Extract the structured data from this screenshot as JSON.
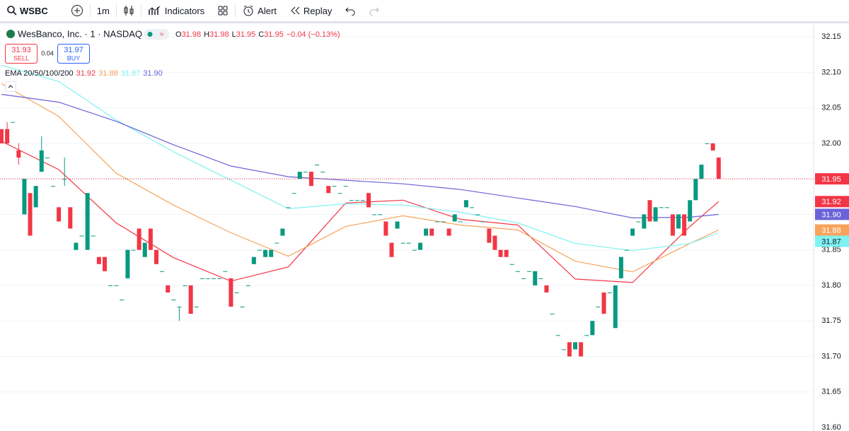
{
  "toolbar": {
    "symbol": "WSBC",
    "interval": "1m",
    "indicators": "Indicators",
    "alert": "Alert",
    "replay": "Replay"
  },
  "legend": {
    "title": "WesBanco, Inc. · 1 · NASDAQ",
    "o_label": "O",
    "open": "31.98",
    "h_label": "H",
    "high": "31.98",
    "l_label": "L",
    "low": "31.95",
    "c_label": "C",
    "close": "31.95",
    "change": "−0.04 (−0.13%)"
  },
  "trade": {
    "sell_price": "31.93",
    "sell": "SELL",
    "spread": "0.04",
    "buy_price": "31.97",
    "buy": "BUY"
  },
  "chart_data": {
    "type": "candlestick",
    "indicator_label": "EMA 20/50/100/200",
    "up_color": "#089981",
    "down_color": "#f23645",
    "ohlc": [
      [
        32.02,
        32.02,
        32.0,
        32.0
      ],
      [
        32.02,
        32.03,
        32.0,
        32.0
      ],
      [
        32.03,
        32.03,
        32.03,
        32.03
      ],
      [
        31.99,
        32.0,
        31.97,
        31.98
      ],
      [
        31.9,
        31.95,
        31.9,
        31.95
      ],
      [
        31.93,
        31.93,
        31.87,
        31.87
      ],
      [
        31.91,
        31.94,
        31.91,
        31.94
      ],
      [
        31.96,
        32.01,
        31.96,
        31.99
      ],
      [
        31.98,
        31.98,
        31.98,
        31.98
      ],
      [
        31.94,
        31.94,
        31.94,
        31.94
      ],
      [
        31.91,
        31.91,
        31.89,
        31.89
      ],
      [
        31.95,
        31.98,
        31.94,
        31.95
      ],
      [
        31.91,
        31.91,
        31.88,
        31.88
      ],
      [
        31.85,
        31.86,
        31.85,
        31.86
      ],
      [
        31.87,
        31.87,
        31.87,
        31.87
      ],
      [
        31.85,
        31.93,
        31.85,
        31.93
      ],
      [
        31.87,
        31.87,
        31.87,
        31.87
      ],
      [
        31.84,
        31.84,
        31.83,
        31.83
      ],
      [
        31.84,
        31.84,
        31.82,
        31.82
      ],
      [
        31.8,
        31.8,
        31.8,
        31.8
      ],
      [
        31.8,
        31.8,
        31.8,
        31.8
      ],
      [
        31.78,
        31.78,
        31.78,
        31.78
      ],
      [
        31.81,
        31.85,
        31.81,
        31.85
      ],
      [
        31.85,
        31.85,
        31.85,
        31.85
      ],
      [
        31.88,
        31.88,
        31.85,
        31.85
      ],
      [
        31.84,
        31.86,
        31.84,
        31.86
      ],
      [
        31.88,
        31.88,
        31.85,
        31.85
      ],
      [
        31.85,
        31.85,
        31.83,
        31.83
      ],
      [
        31.82,
        31.82,
        31.82,
        31.82
      ],
      [
        31.8,
        31.8,
        31.79,
        31.79
      ],
      [
        31.78,
        31.78,
        31.78,
        31.78
      ],
      [
        31.77,
        31.77,
        31.75,
        31.77
      ],
      [
        31.8,
        31.8,
        31.8,
        31.8
      ],
      [
        31.8,
        31.8,
        31.76,
        31.76
      ],
      [
        31.77,
        31.77,
        31.77,
        31.77
      ],
      [
        31.81,
        31.81,
        31.81,
        31.81
      ],
      [
        31.81,
        31.81,
        31.81,
        31.81
      ],
      [
        31.81,
        31.81,
        31.81,
        31.81
      ],
      [
        31.81,
        31.81,
        31.81,
        31.81
      ],
      [
        31.82,
        31.82,
        31.82,
        31.82
      ],
      [
        31.81,
        31.81,
        31.77,
        31.77
      ],
      [
        31.79,
        31.79,
        31.79,
        31.79
      ],
      [
        31.77,
        31.77,
        31.77,
        31.77
      ],
      [
        31.8,
        31.8,
        31.8,
        31.8
      ],
      [
        31.83,
        31.84,
        31.83,
        31.84
      ],
      [
        31.85,
        31.85,
        31.85,
        31.85
      ],
      [
        31.84,
        31.85,
        31.84,
        31.85
      ],
      [
        31.84,
        31.85,
        31.84,
        31.85
      ],
      [
        31.86,
        31.86,
        31.86,
        31.86
      ],
      [
        31.87,
        31.88,
        31.87,
        31.88
      ],
      [
        31.91,
        31.91,
        31.91,
        31.91
      ],
      [
        31.93,
        31.93,
        31.93,
        31.93
      ],
      [
        31.95,
        31.96,
        31.95,
        31.96
      ],
      [
        31.96,
        31.96,
        31.96,
        31.96
      ],
      [
        31.96,
        31.96,
        31.94,
        31.94
      ],
      [
        31.97,
        31.97,
        31.97,
        31.97
      ],
      [
        31.96,
        31.96,
        31.96,
        31.96
      ],
      [
        31.94,
        31.94,
        31.93,
        31.93
      ],
      [
        31.94,
        31.94,
        31.94,
        31.94
      ],
      [
        31.93,
        31.93,
        31.93,
        31.93
      ],
      [
        31.94,
        31.94,
        31.94,
        31.94
      ],
      [
        31.92,
        31.92,
        31.92,
        31.92
      ],
      [
        31.92,
        31.92,
        31.92,
        31.92
      ],
      [
        31.92,
        31.92,
        31.92,
        31.92
      ],
      [
        31.93,
        31.93,
        31.91,
        31.91
      ],
      [
        31.9,
        31.9,
        31.9,
        31.9
      ],
      [
        31.9,
        31.9,
        31.9,
        31.9
      ],
      [
        31.89,
        31.89,
        31.87,
        31.87
      ],
      [
        31.86,
        31.86,
        31.84,
        31.84
      ],
      [
        31.88,
        31.89,
        31.88,
        31.89
      ],
      [
        31.86,
        31.86,
        31.86,
        31.86
      ],
      [
        31.86,
        31.86,
        31.86,
        31.86
      ],
      [
        31.85,
        31.85,
        31.85,
        31.85
      ],
      [
        31.85,
        31.86,
        31.85,
        31.86
      ],
      [
        31.87,
        31.88,
        31.87,
        31.88
      ],
      [
        31.88,
        31.88,
        31.87,
        31.87
      ],
      [
        31.89,
        31.89,
        31.89,
        31.89
      ],
      [
        31.89,
        31.89,
        31.89,
        31.89
      ],
      [
        31.88,
        31.88,
        31.87,
        31.87
      ],
      [
        31.89,
        31.9,
        31.89,
        31.9
      ],
      [
        31.89,
        31.89,
        31.89,
        31.89
      ],
      [
        31.91,
        31.92,
        31.91,
        31.92
      ],
      [
        31.91,
        31.91,
        31.91,
        31.91
      ],
      [
        31.9,
        31.9,
        31.9,
        31.9
      ],
      [
        31.89,
        31.89,
        31.89,
        31.89
      ],
      [
        31.88,
        31.88,
        31.86,
        31.86
      ],
      [
        31.87,
        31.87,
        31.85,
        31.85
      ],
      [
        31.85,
        31.85,
        31.84,
        31.84
      ],
      [
        31.85,
        31.85,
        31.84,
        31.84
      ],
      [
        31.83,
        31.83,
        31.83,
        31.83
      ],
      [
        31.82,
        31.82,
        31.82,
        31.82
      ],
      [
        31.81,
        31.81,
        31.81,
        31.81
      ],
      [
        31.82,
        31.82,
        31.82,
        31.82
      ],
      [
        31.8,
        31.82,
        31.8,
        31.82
      ],
      [
        31.81,
        31.81,
        31.81,
        31.81
      ],
      [
        31.8,
        31.8,
        31.79,
        31.79
      ],
      [
        31.76,
        31.76,
        31.76,
        31.76
      ],
      [
        31.73,
        31.73,
        31.73,
        31.73
      ],
      [
        31.71,
        31.71,
        31.71,
        31.71
      ],
      [
        31.72,
        31.72,
        31.7,
        31.7
      ],
      [
        31.71,
        31.72,
        31.71,
        31.72
      ],
      [
        31.72,
        31.72,
        31.7,
        31.7
      ],
      [
        31.73,
        31.73,
        31.73,
        31.73
      ],
      [
        31.73,
        31.75,
        31.73,
        31.75
      ],
      [
        31.77,
        31.77,
        31.77,
        31.77
      ],
      [
        31.79,
        31.79,
        31.76,
        31.76
      ],
      [
        31.79,
        31.79,
        31.79,
        31.79
      ],
      [
        31.74,
        31.8,
        31.74,
        31.8
      ],
      [
        31.81,
        31.84,
        31.81,
        31.84
      ],
      [
        31.85,
        31.85,
        31.85,
        31.85
      ],
      [
        31.87,
        31.88,
        31.87,
        31.88
      ],
      [
        31.89,
        31.89,
        31.89,
        31.89
      ],
      [
        31.88,
        31.9,
        31.88,
        31.9
      ],
      [
        31.92,
        31.92,
        31.89,
        31.89
      ],
      [
        31.89,
        31.91,
        31.89,
        31.91
      ],
      [
        31.91,
        31.91,
        31.91,
        31.91
      ],
      [
        31.91,
        31.91,
        31.91,
        31.91
      ],
      [
        31.9,
        31.9,
        31.87,
        31.87
      ],
      [
        31.88,
        31.9,
        31.88,
        31.9
      ],
      [
        31.9,
        31.9,
        31.87,
        31.87
      ],
      [
        31.89,
        31.92,
        31.89,
        31.92
      ],
      [
        31.92,
        31.95,
        31.92,
        31.95
      ],
      [
        31.95,
        31.97,
        31.95,
        31.97
      ],
      [
        32.0,
        32.0,
        32.0,
        32.0
      ],
      [
        32.0,
        32.0,
        31.99,
        31.99
      ],
      [
        31.98,
        31.98,
        31.95,
        31.95
      ]
    ],
    "series": [
      {
        "color": "#f23645",
        "label_text_color": "#ffffff",
        "x": [
          0,
          10,
          20,
          30,
          40,
          50,
          60,
          70,
          80,
          90,
          100,
          110,
          120,
          125
        ],
        "values": [
          32.003,
          31.963,
          31.888,
          31.839,
          31.806,
          31.826,
          31.916,
          31.92,
          31.893,
          31.885,
          31.809,
          31.804,
          31.883,
          31.918
        ],
        "value_label": "31.92"
      },
      {
        "color": "#f7a35c",
        "label_text_color": "#ffffff",
        "x": [
          0,
          10,
          20,
          30,
          40,
          50,
          60,
          70,
          80,
          90,
          100,
          110,
          120,
          125
        ],
        "values": [
          32.084,
          32.038,
          31.958,
          31.913,
          31.874,
          31.841,
          31.883,
          31.898,
          31.885,
          31.878,
          31.834,
          31.819,
          31.859,
          31.878
        ],
        "value_label": "31.88"
      },
      {
        "color": "#7ef2f0",
        "label_text_color": "#131722",
        "x": [
          0,
          10,
          20,
          30,
          40,
          50,
          60,
          70,
          80,
          90,
          100,
          110,
          120,
          125
        ],
        "values": [
          32.11,
          32.087,
          32.033,
          31.988,
          31.948,
          31.908,
          31.915,
          31.913,
          31.903,
          31.888,
          31.859,
          31.849,
          31.859,
          31.874
        ],
        "value_label": "31.87"
      },
      {
        "color": "#6a63d8",
        "label_text_color": "#ffffff",
        "x": [
          0,
          10,
          20,
          30,
          40,
          50,
          60,
          70,
          80,
          90,
          100,
          110,
          120,
          125
        ],
        "values": [
          32.069,
          32.058,
          32.031,
          31.998,
          31.968,
          31.953,
          31.948,
          31.943,
          31.935,
          31.923,
          31.911,
          31.895,
          31.896,
          31.9
        ],
        "value_label": "31.90"
      }
    ],
    "price_line": {
      "value": 31.95,
      "label": "31.95",
      "color": "#f23645"
    },
    "ylim": [
      31.595,
      32.167
    ],
    "yticks": [
      32.15,
      {
        "value": 32.1,
        "label": "32.10"
      },
      32.05,
      {
        "value": 32.0,
        "label": "32.00"
      },
      31.95,
      {
        "value": 31.9,
        "label": "31.90"
      },
      31.85,
      {
        "value": 31.8,
        "label": "31.80"
      },
      31.75,
      {
        "value": 31.7,
        "label": "31.70"
      },
      31.65,
      {
        "value": 31.6,
        "label": "31.60"
      }
    ],
    "grid": true
  }
}
